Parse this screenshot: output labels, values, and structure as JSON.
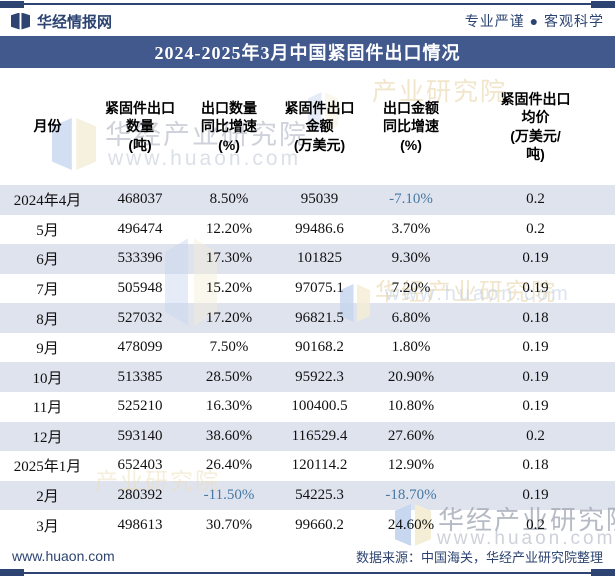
{
  "header": {
    "brand": "华经情报网",
    "slogan": "专业严谨 ● 客观科学"
  },
  "title": "2024-2025年3月中国紧固件出口情况",
  "table": {
    "columns": [
      "月份",
      "紧固件出口\n数量\n(吨)",
      "出口数量\n同比增速\n(%)",
      "紧固件出口\n金额\n(万美元)",
      "出口金额\n同比增速\n(%)",
      "紧固件出口\n均价\n(万美元/\n吨)"
    ],
    "rows": [
      {
        "month": "2024年4月",
        "qty": "468037",
        "qty_growth": "8.50%",
        "amount": "95039",
        "amount_growth": "-7.10%",
        "price": "0.2"
      },
      {
        "month": "5月",
        "qty": "496474",
        "qty_growth": "12.20%",
        "amount": "99486.6",
        "amount_growth": "3.70%",
        "price": "0.2"
      },
      {
        "month": "6月",
        "qty": "533396",
        "qty_growth": "17.30%",
        "amount": "101825",
        "amount_growth": "9.30%",
        "price": "0.19"
      },
      {
        "month": "7月",
        "qty": "505948",
        "qty_growth": "15.20%",
        "amount": "97075.1",
        "amount_growth": "7.20%",
        "price": "0.19"
      },
      {
        "month": "8月",
        "qty": "527032",
        "qty_growth": "17.20%",
        "amount": "96821.5",
        "amount_growth": "6.80%",
        "price": "0.18"
      },
      {
        "month": "9月",
        "qty": "478099",
        "qty_growth": "7.50%",
        "amount": "90168.2",
        "amount_growth": "1.80%",
        "price": "0.19"
      },
      {
        "month": "10月",
        "qty": "513385",
        "qty_growth": "28.50%",
        "amount": "95922.3",
        "amount_growth": "20.90%",
        "price": "0.19"
      },
      {
        "month": "11月",
        "qty": "525210",
        "qty_growth": "16.30%",
        "amount": "100400.5",
        "amount_growth": "10.80%",
        "price": "0.19"
      },
      {
        "month": "12月",
        "qty": "593140",
        "qty_growth": "38.60%",
        "amount": "116529.4",
        "amount_growth": "27.60%",
        "price": "0.2"
      },
      {
        "month": "2025年1月",
        "qty": "652403",
        "qty_growth": "26.40%",
        "amount": "120114.2",
        "amount_growth": "12.90%",
        "price": "0.18"
      },
      {
        "month": "2月",
        "qty": "280392",
        "qty_growth": "-11.50%",
        "amount": "54225.3",
        "amount_growth": "-18.70%",
        "price": "0.19"
      },
      {
        "month": "3月",
        "qty": "498613",
        "qty_growth": "30.70%",
        "amount": "99660.2",
        "amount_growth": "24.60%",
        "price": "0.2"
      }
    ]
  },
  "footer": {
    "site": "www.huaon.com",
    "source": "数据来源：中国海关，华经产业研究院整理"
  },
  "watermark": {
    "brand_text": "华经产业研究院",
    "brand_text_partial": "产业研究院",
    "site_text": "www.huaon.com"
  },
  "colors": {
    "navy": "#2d4472",
    "title_band": "#42598e",
    "row_stripe": "#dfe3ee",
    "negative_value": "#4679a4",
    "watermark_cream": "#f0e6cf",
    "watermark_blue": "#c7d7ef"
  },
  "chart_data": {
    "type": "table",
    "title": "2024-2025年3月中国紧固件出口情况",
    "columns": [
      "月份",
      "紧固件出口数量(吨)",
      "出口数量同比增速(%)",
      "紧固件出口金额(万美元)",
      "出口金额同比增速(%)",
      "紧固件出口均价(万美元/吨)"
    ],
    "rows": [
      [
        "2024年4月",
        468037,
        8.5,
        95039,
        -7.1,
        0.2
      ],
      [
        "5月",
        496474,
        12.2,
        99486.6,
        3.7,
        0.2
      ],
      [
        "6月",
        533396,
        17.3,
        101825,
        9.3,
        0.19
      ],
      [
        "7月",
        505948,
        15.2,
        97075.1,
        7.2,
        0.19
      ],
      [
        "8月",
        527032,
        17.2,
        96821.5,
        6.8,
        0.18
      ],
      [
        "9月",
        478099,
        7.5,
        90168.2,
        1.8,
        0.19
      ],
      [
        "10月",
        513385,
        28.5,
        95922.3,
        20.9,
        0.19
      ],
      [
        "11月",
        525210,
        16.3,
        100400.5,
        10.8,
        0.19
      ],
      [
        "12月",
        593140,
        38.6,
        116529.4,
        27.6,
        0.2
      ],
      [
        "2025年1月",
        652403,
        26.4,
        120114.2,
        12.9,
        0.18
      ],
      [
        "2月",
        280392,
        -11.5,
        54225.3,
        -18.7,
        0.19
      ],
      [
        "3月",
        498613,
        30.7,
        99660.2,
        24.6,
        0.2
      ]
    ],
    "notes": "negative growth values rendered in blue (#4679a4); source: 中国海关, 华经产业研究院整理"
  }
}
